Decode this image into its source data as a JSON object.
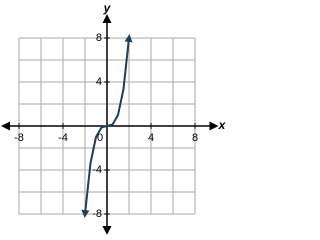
{
  "chart_data": {
    "type": "line",
    "x_label": "x",
    "y_label": "y",
    "x": [
      -2,
      -1.5,
      -1,
      -0.5,
      0,
      0.5,
      1,
      1.5,
      2
    ],
    "series": [
      {
        "color": "#1e3f5a",
        "values": [
          -8,
          -3.375,
          -1,
          -0.125,
          0,
          0.125,
          1,
          3.375,
          8
        ]
      }
    ],
    "xlim": [
      -9.5,
      10
    ],
    "ylim": [
      -9.5,
      9.5
    ],
    "xticks": [
      -8,
      -4,
      0,
      4,
      8
    ],
    "yticks": [
      -8,
      -4,
      4,
      8
    ],
    "grid_lines": [
      -8,
      -6,
      -4,
      -2,
      0,
      2,
      4,
      6,
      8
    ],
    "grid": true
  }
}
